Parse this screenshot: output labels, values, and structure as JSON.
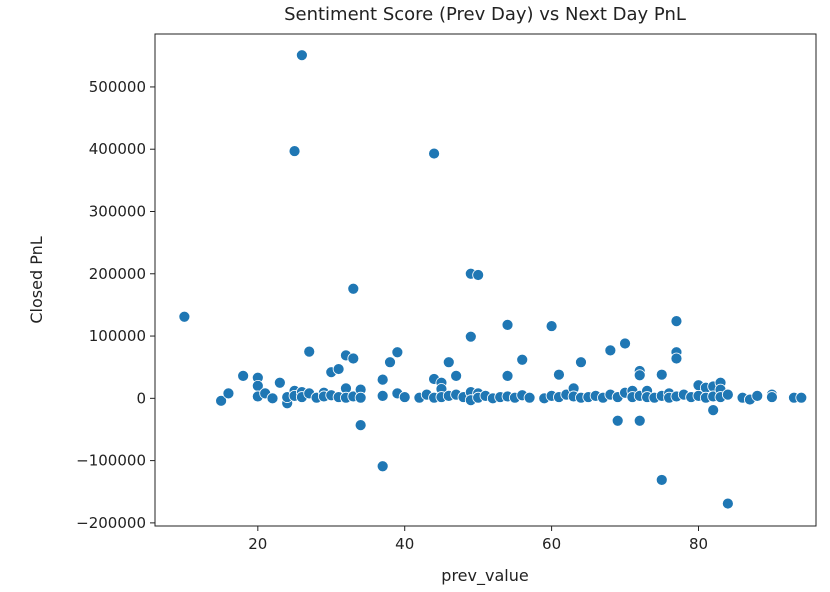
{
  "chart_data": {
    "type": "scatter",
    "title": "Sentiment Score (Prev Day) vs Next Day PnL",
    "xlabel": "prev_value",
    "ylabel": "Closed PnL",
    "xlim": [
      6,
      96
    ],
    "ylim": [
      -205000,
      585000
    ],
    "xticks": [
      20,
      40,
      60,
      80
    ],
    "xtick_labels": [
      "20",
      "40",
      "60",
      "80"
    ],
    "yticks": [
      -200000,
      -100000,
      0,
      100000,
      200000,
      300000,
      400000,
      500000
    ],
    "ytick_labels": [
      "−200000",
      "−100000",
      "0",
      "100000",
      "200000",
      "300000",
      "400000",
      "500000"
    ],
    "grid": false,
    "legend": "none",
    "marker_color": "#1f77b4",
    "marker_edge_color": "#ffffff",
    "points": [
      {
        "x": 10,
        "y": 131000
      },
      {
        "x": 15,
        "y": -4000
      },
      {
        "x": 16,
        "y": 8000
      },
      {
        "x": 18,
        "y": 36000
      },
      {
        "x": 20,
        "y": 33000
      },
      {
        "x": 20,
        "y": 20000
      },
      {
        "x": 20,
        "y": 3000
      },
      {
        "x": 21,
        "y": 8000
      },
      {
        "x": 22,
        "y": 0
      },
      {
        "x": 23,
        "y": 25000
      },
      {
        "x": 24,
        "y": -8000
      },
      {
        "x": 24,
        "y": 2000
      },
      {
        "x": 25,
        "y": 397000
      },
      {
        "x": 25,
        "y": 12000
      },
      {
        "x": 25,
        "y": 4000
      },
      {
        "x": 26,
        "y": 551000
      },
      {
        "x": 26,
        "y": 10000
      },
      {
        "x": 26,
        "y": 2000
      },
      {
        "x": 27,
        "y": 75000
      },
      {
        "x": 27,
        "y": 8000
      },
      {
        "x": 28,
        "y": 1000
      },
      {
        "x": 29,
        "y": 9000
      },
      {
        "x": 29,
        "y": 3000
      },
      {
        "x": 30,
        "y": 42000
      },
      {
        "x": 30,
        "y": 5000
      },
      {
        "x": 31,
        "y": 47000
      },
      {
        "x": 31,
        "y": 2000
      },
      {
        "x": 32,
        "y": 69000
      },
      {
        "x": 32,
        "y": 16000
      },
      {
        "x": 32,
        "y": 1000
      },
      {
        "x": 33,
        "y": 176000
      },
      {
        "x": 33,
        "y": 64000
      },
      {
        "x": 33,
        "y": 3000
      },
      {
        "x": 34,
        "y": 14000
      },
      {
        "x": 34,
        "y": 1000
      },
      {
        "x": 34,
        "y": -43000
      },
      {
        "x": 37,
        "y": -109000
      },
      {
        "x": 37,
        "y": 30000
      },
      {
        "x": 37,
        "y": 4000
      },
      {
        "x": 38,
        "y": 58000
      },
      {
        "x": 39,
        "y": 74000
      },
      {
        "x": 39,
        "y": 8000
      },
      {
        "x": 40,
        "y": 2000
      },
      {
        "x": 42,
        "y": 1000
      },
      {
        "x": 43,
        "y": 6000
      },
      {
        "x": 44,
        "y": 393000
      },
      {
        "x": 44,
        "y": 31000
      },
      {
        "x": 44,
        "y": 1000
      },
      {
        "x": 45,
        "y": 25000
      },
      {
        "x": 45,
        "y": 15000
      },
      {
        "x": 45,
        "y": 2000
      },
      {
        "x": 46,
        "y": 58000
      },
      {
        "x": 46,
        "y": 4000
      },
      {
        "x": 47,
        "y": 36000
      },
      {
        "x": 47,
        "y": 6000
      },
      {
        "x": 48,
        "y": 2000
      },
      {
        "x": 49,
        "y": 200000
      },
      {
        "x": 49,
        "y": 99000
      },
      {
        "x": 49,
        "y": 10000
      },
      {
        "x": 49,
        "y": -3000
      },
      {
        "x": 50,
        "y": 198000
      },
      {
        "x": 50,
        "y": 8000
      },
      {
        "x": 50,
        "y": 1000
      },
      {
        "x": 51,
        "y": 4000
      },
      {
        "x": 52,
        "y": 0
      },
      {
        "x": 53,
        "y": 2000
      },
      {
        "x": 54,
        "y": 118000
      },
      {
        "x": 54,
        "y": 36000
      },
      {
        "x": 54,
        "y": 3000
      },
      {
        "x": 55,
        "y": 1000
      },
      {
        "x": 56,
        "y": 62000
      },
      {
        "x": 56,
        "y": 5000
      },
      {
        "x": 57,
        "y": 1000
      },
      {
        "x": 59,
        "y": 0
      },
      {
        "x": 60,
        "y": 116000
      },
      {
        "x": 60,
        "y": 4000
      },
      {
        "x": 61,
        "y": 38000
      },
      {
        "x": 61,
        "y": 2000
      },
      {
        "x": 62,
        "y": 6000
      },
      {
        "x": 63,
        "y": 16000
      },
      {
        "x": 63,
        "y": 3000
      },
      {
        "x": 64,
        "y": 58000
      },
      {
        "x": 64,
        "y": 1000
      },
      {
        "x": 65,
        "y": 2000
      },
      {
        "x": 66,
        "y": 4000
      },
      {
        "x": 67,
        "y": 1000
      },
      {
        "x": 68,
        "y": 77000
      },
      {
        "x": 68,
        "y": 6000
      },
      {
        "x": 69,
        "y": -36000
      },
      {
        "x": 69,
        "y": 2000
      },
      {
        "x": 70,
        "y": 88000
      },
      {
        "x": 70,
        "y": 9000
      },
      {
        "x": 71,
        "y": 12000
      },
      {
        "x": 71,
        "y": 2000
      },
      {
        "x": 72,
        "y": 44000
      },
      {
        "x": 72,
        "y": 37000
      },
      {
        "x": 72,
        "y": 4000
      },
      {
        "x": 72,
        "y": -36000
      },
      {
        "x": 73,
        "y": 12000
      },
      {
        "x": 73,
        "y": 2000
      },
      {
        "x": 74,
        "y": 1000
      },
      {
        "x": 75,
        "y": 38000
      },
      {
        "x": 75,
        "y": 4000
      },
      {
        "x": 75,
        "y": -131000
      },
      {
        "x": 76,
        "y": 8000
      },
      {
        "x": 76,
        "y": 1000
      },
      {
        "x": 77,
        "y": 124000
      },
      {
        "x": 77,
        "y": 74000
      },
      {
        "x": 77,
        "y": 64000
      },
      {
        "x": 77,
        "y": 3000
      },
      {
        "x": 78,
        "y": 6000
      },
      {
        "x": 79,
        "y": 2000
      },
      {
        "x": 80,
        "y": 21000
      },
      {
        "x": 80,
        "y": 4000
      },
      {
        "x": 81,
        "y": 17000
      },
      {
        "x": 81,
        "y": 1000
      },
      {
        "x": 82,
        "y": 19000
      },
      {
        "x": 82,
        "y": -19000
      },
      {
        "x": 82,
        "y": 3000
      },
      {
        "x": 83,
        "y": 25000
      },
      {
        "x": 83,
        "y": 14000
      },
      {
        "x": 83,
        "y": 2000
      },
      {
        "x": 84,
        "y": -169000
      },
      {
        "x": 84,
        "y": 6000
      },
      {
        "x": 86,
        "y": 1000
      },
      {
        "x": 87,
        "y": -2000
      },
      {
        "x": 88,
        "y": 4000
      },
      {
        "x": 90,
        "y": 6000
      },
      {
        "x": 90,
        "y": 2000
      },
      {
        "x": 93,
        "y": 1000
      },
      {
        "x": 94,
        "y": 1000
      }
    ]
  }
}
